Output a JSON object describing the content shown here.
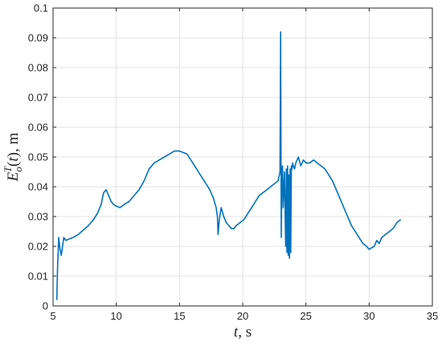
{
  "chart_data": {
    "type": "line",
    "title": "",
    "xlabel": "t, s",
    "ylabel": "E_o^T(t), m",
    "xlim": [
      5,
      35
    ],
    "ylim": [
      0,
      0.1
    ],
    "xticks": [
      5,
      10,
      15,
      20,
      25,
      30,
      35
    ],
    "yticks": [
      0,
      0.01,
      0.02,
      0.03,
      0.04,
      0.05,
      0.06,
      0.07,
      0.08,
      0.09,
      0.1
    ],
    "xtick_labels": [
      "5",
      "10",
      "15",
      "20",
      "25",
      "30",
      "35"
    ],
    "ytick_labels": [
      "0",
      "0.01",
      "0.02",
      "0.03",
      "0.04",
      "0.05",
      "0.06",
      "0.07",
      "0.08",
      "0.09",
      "0.1"
    ],
    "grid": true,
    "line_color": "#0072BD",
    "series": [
      {
        "x": [
          5.3,
          5.35,
          5.45,
          5.55,
          5.65,
          5.75,
          5.85,
          6.0,
          6.3,
          6.6,
          7.0,
          7.4,
          7.8,
          8.2,
          8.5,
          8.8,
          9.0,
          9.2,
          9.4,
          9.6,
          9.8,
          10.0,
          10.3,
          10.6,
          11.0,
          11.4,
          11.8,
          12.2,
          12.6,
          13.0,
          13.4,
          13.8,
          14.2,
          14.6,
          15.0,
          15.3,
          15.6,
          15.9,
          16.2,
          16.5,
          16.8,
          17.1,
          17.4,
          17.7,
          17.9,
          18.0,
          18.05,
          18.15,
          18.3,
          18.5,
          18.7,
          18.9,
          19.1,
          19.3,
          19.5,
          19.8,
          20.1,
          20.4,
          20.7,
          21.0,
          21.3,
          21.6,
          21.9,
          22.2,
          22.5,
          22.8,
          22.95,
          23.0,
          23.05,
          23.1,
          23.15,
          23.2,
          23.3,
          23.4,
          23.45,
          23.5,
          23.55,
          23.6,
          23.65,
          23.7,
          23.75,
          23.8,
          23.85,
          23.9,
          23.95,
          24.0,
          24.1,
          24.2,
          24.4,
          24.6,
          24.8,
          25.0,
          25.3,
          25.6,
          25.9,
          26.2,
          26.5,
          26.8,
          27.1,
          27.4,
          27.7,
          28.0,
          28.3,
          28.6,
          28.9,
          29.2,
          29.5,
          29.8,
          30.0,
          30.2,
          30.4,
          30.6,
          30.8,
          31.0,
          31.3,
          31.6,
          31.9,
          32.2,
          32.5
        ],
        "y": [
          0.002,
          0.012,
          0.023,
          0.019,
          0.017,
          0.02,
          0.023,
          0.022,
          0.0225,
          0.023,
          0.024,
          0.0255,
          0.027,
          0.029,
          0.031,
          0.034,
          0.038,
          0.039,
          0.037,
          0.035,
          0.034,
          0.0335,
          0.033,
          0.034,
          0.035,
          0.037,
          0.039,
          0.042,
          0.046,
          0.048,
          0.049,
          0.05,
          0.051,
          0.052,
          0.052,
          0.0515,
          0.051,
          0.049,
          0.047,
          0.045,
          0.043,
          0.041,
          0.039,
          0.036,
          0.033,
          0.03,
          0.024,
          0.029,
          0.033,
          0.03,
          0.028,
          0.027,
          0.026,
          0.026,
          0.027,
          0.028,
          0.029,
          0.031,
          0.033,
          0.035,
          0.037,
          0.038,
          0.039,
          0.04,
          0.041,
          0.042,
          0.045,
          0.092,
          0.023,
          0.045,
          0.047,
          0.033,
          0.045,
          0.02,
          0.046,
          0.018,
          0.047,
          0.017,
          0.044,
          0.016,
          0.046,
          0.018,
          0.047,
          0.046,
          0.048,
          0.047,
          0.046,
          0.048,
          0.05,
          0.047,
          0.049,
          0.048,
          0.048,
          0.049,
          0.048,
          0.047,
          0.046,
          0.044,
          0.042,
          0.039,
          0.036,
          0.033,
          0.03,
          0.027,
          0.025,
          0.023,
          0.021,
          0.02,
          0.019,
          0.0195,
          0.02,
          0.022,
          0.021,
          0.023,
          0.024,
          0.025,
          0.026,
          0.028,
          0.029
        ]
      }
    ]
  }
}
